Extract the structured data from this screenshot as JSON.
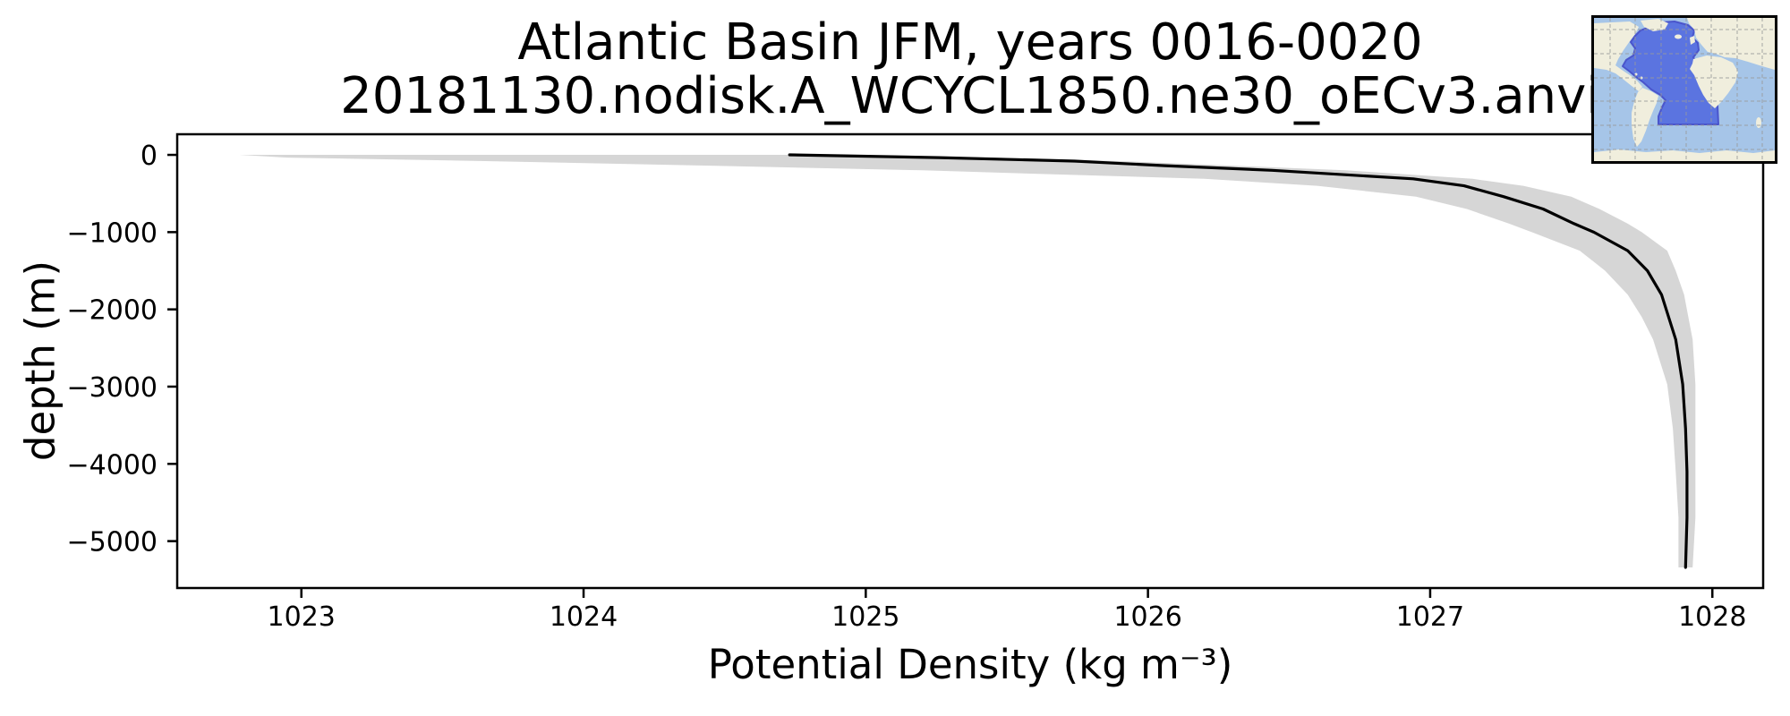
{
  "chart_data": {
    "type": "line",
    "title": "Atlantic Basin JFM, years 0016-0020",
    "subtitle": "20181130.nodisk.A_WCYCL1850.ne30_oECv3.anvi",
    "xlabel": "Potential Density (kg m⁻³)",
    "ylabel": "depth (m)",
    "xlim": [
      1022.56,
      1028.18
    ],
    "ylim": [
      -5607,
      267
    ],
    "grid": false,
    "legend": "none",
    "x_ticks": [
      {
        "value": 1023,
        "label": "1023"
      },
      {
        "value": 1024,
        "label": "1024"
      },
      {
        "value": 1025,
        "label": "1025"
      },
      {
        "value": 1026,
        "label": "1026"
      },
      {
        "value": 1027,
        "label": "1027"
      },
      {
        "value": 1028,
        "label": "1028"
      }
    ],
    "y_ticks": [
      {
        "value": 0,
        "label": "0"
      },
      {
        "value": -1000,
        "label": "−1000"
      },
      {
        "value": -2000,
        "label": "−2000"
      },
      {
        "value": -3000,
        "label": "−3000"
      },
      {
        "value": -4000,
        "label": "−4000"
      },
      {
        "value": -5000,
        "label": "−5000"
      }
    ],
    "profile": {
      "name": "mean potential density profile with shaded spread",
      "depth": [
        0,
        -35,
        -80,
        -140,
        -200,
        -310,
        -400,
        -540,
        -700,
        -890,
        -1000,
        -1240,
        -1500,
        -1810,
        -2100,
        -2390,
        -2970,
        -3540,
        -4100,
        -4700,
        -5340
      ],
      "density_mean": [
        1024.73,
        1025.26,
        1025.74,
        1026.06,
        1026.44,
        1026.94,
        1027.12,
        1027.26,
        1027.4,
        1027.51,
        1027.58,
        1027.7,
        1027.77,
        1027.82,
        1027.845,
        1027.87,
        1027.895,
        1027.905,
        1027.91,
        1027.91,
        1027.905
      ],
      "density_min": [
        1022.78,
        1022.95,
        1023.65,
        1024.45,
        1025.2,
        1026.2,
        1026.6,
        1026.95,
        1027.13,
        1027.28,
        1027.36,
        1027.53,
        1027.62,
        1027.7,
        1027.75,
        1027.79,
        1027.84,
        1027.86,
        1027.87,
        1027.88,
        1027.88
      ],
      "density_max": [
        1024.9,
        1025.45,
        1025.9,
        1026.3,
        1026.7,
        1027.15,
        1027.33,
        1027.5,
        1027.6,
        1027.7,
        1027.75,
        1027.84,
        1027.87,
        1027.9,
        1027.915,
        1027.93,
        1027.94,
        1027.94,
        1027.94,
        1027.94,
        1027.93
      ]
    }
  },
  "inset_map": {
    "name": "Atlantic Basin region map",
    "highlighted_region": "Atlantic Basin"
  },
  "colors": {
    "background": "#ffffff",
    "line": "#000000",
    "band": "#d6d6d6",
    "axis": "#000000",
    "text": "#000000",
    "map_ocean": "#a6c5e8",
    "map_land": "#f0eedd",
    "map_basin": "#5b74e0",
    "map_basin_edge": "#4a55cc",
    "map_grid": "#999999"
  }
}
